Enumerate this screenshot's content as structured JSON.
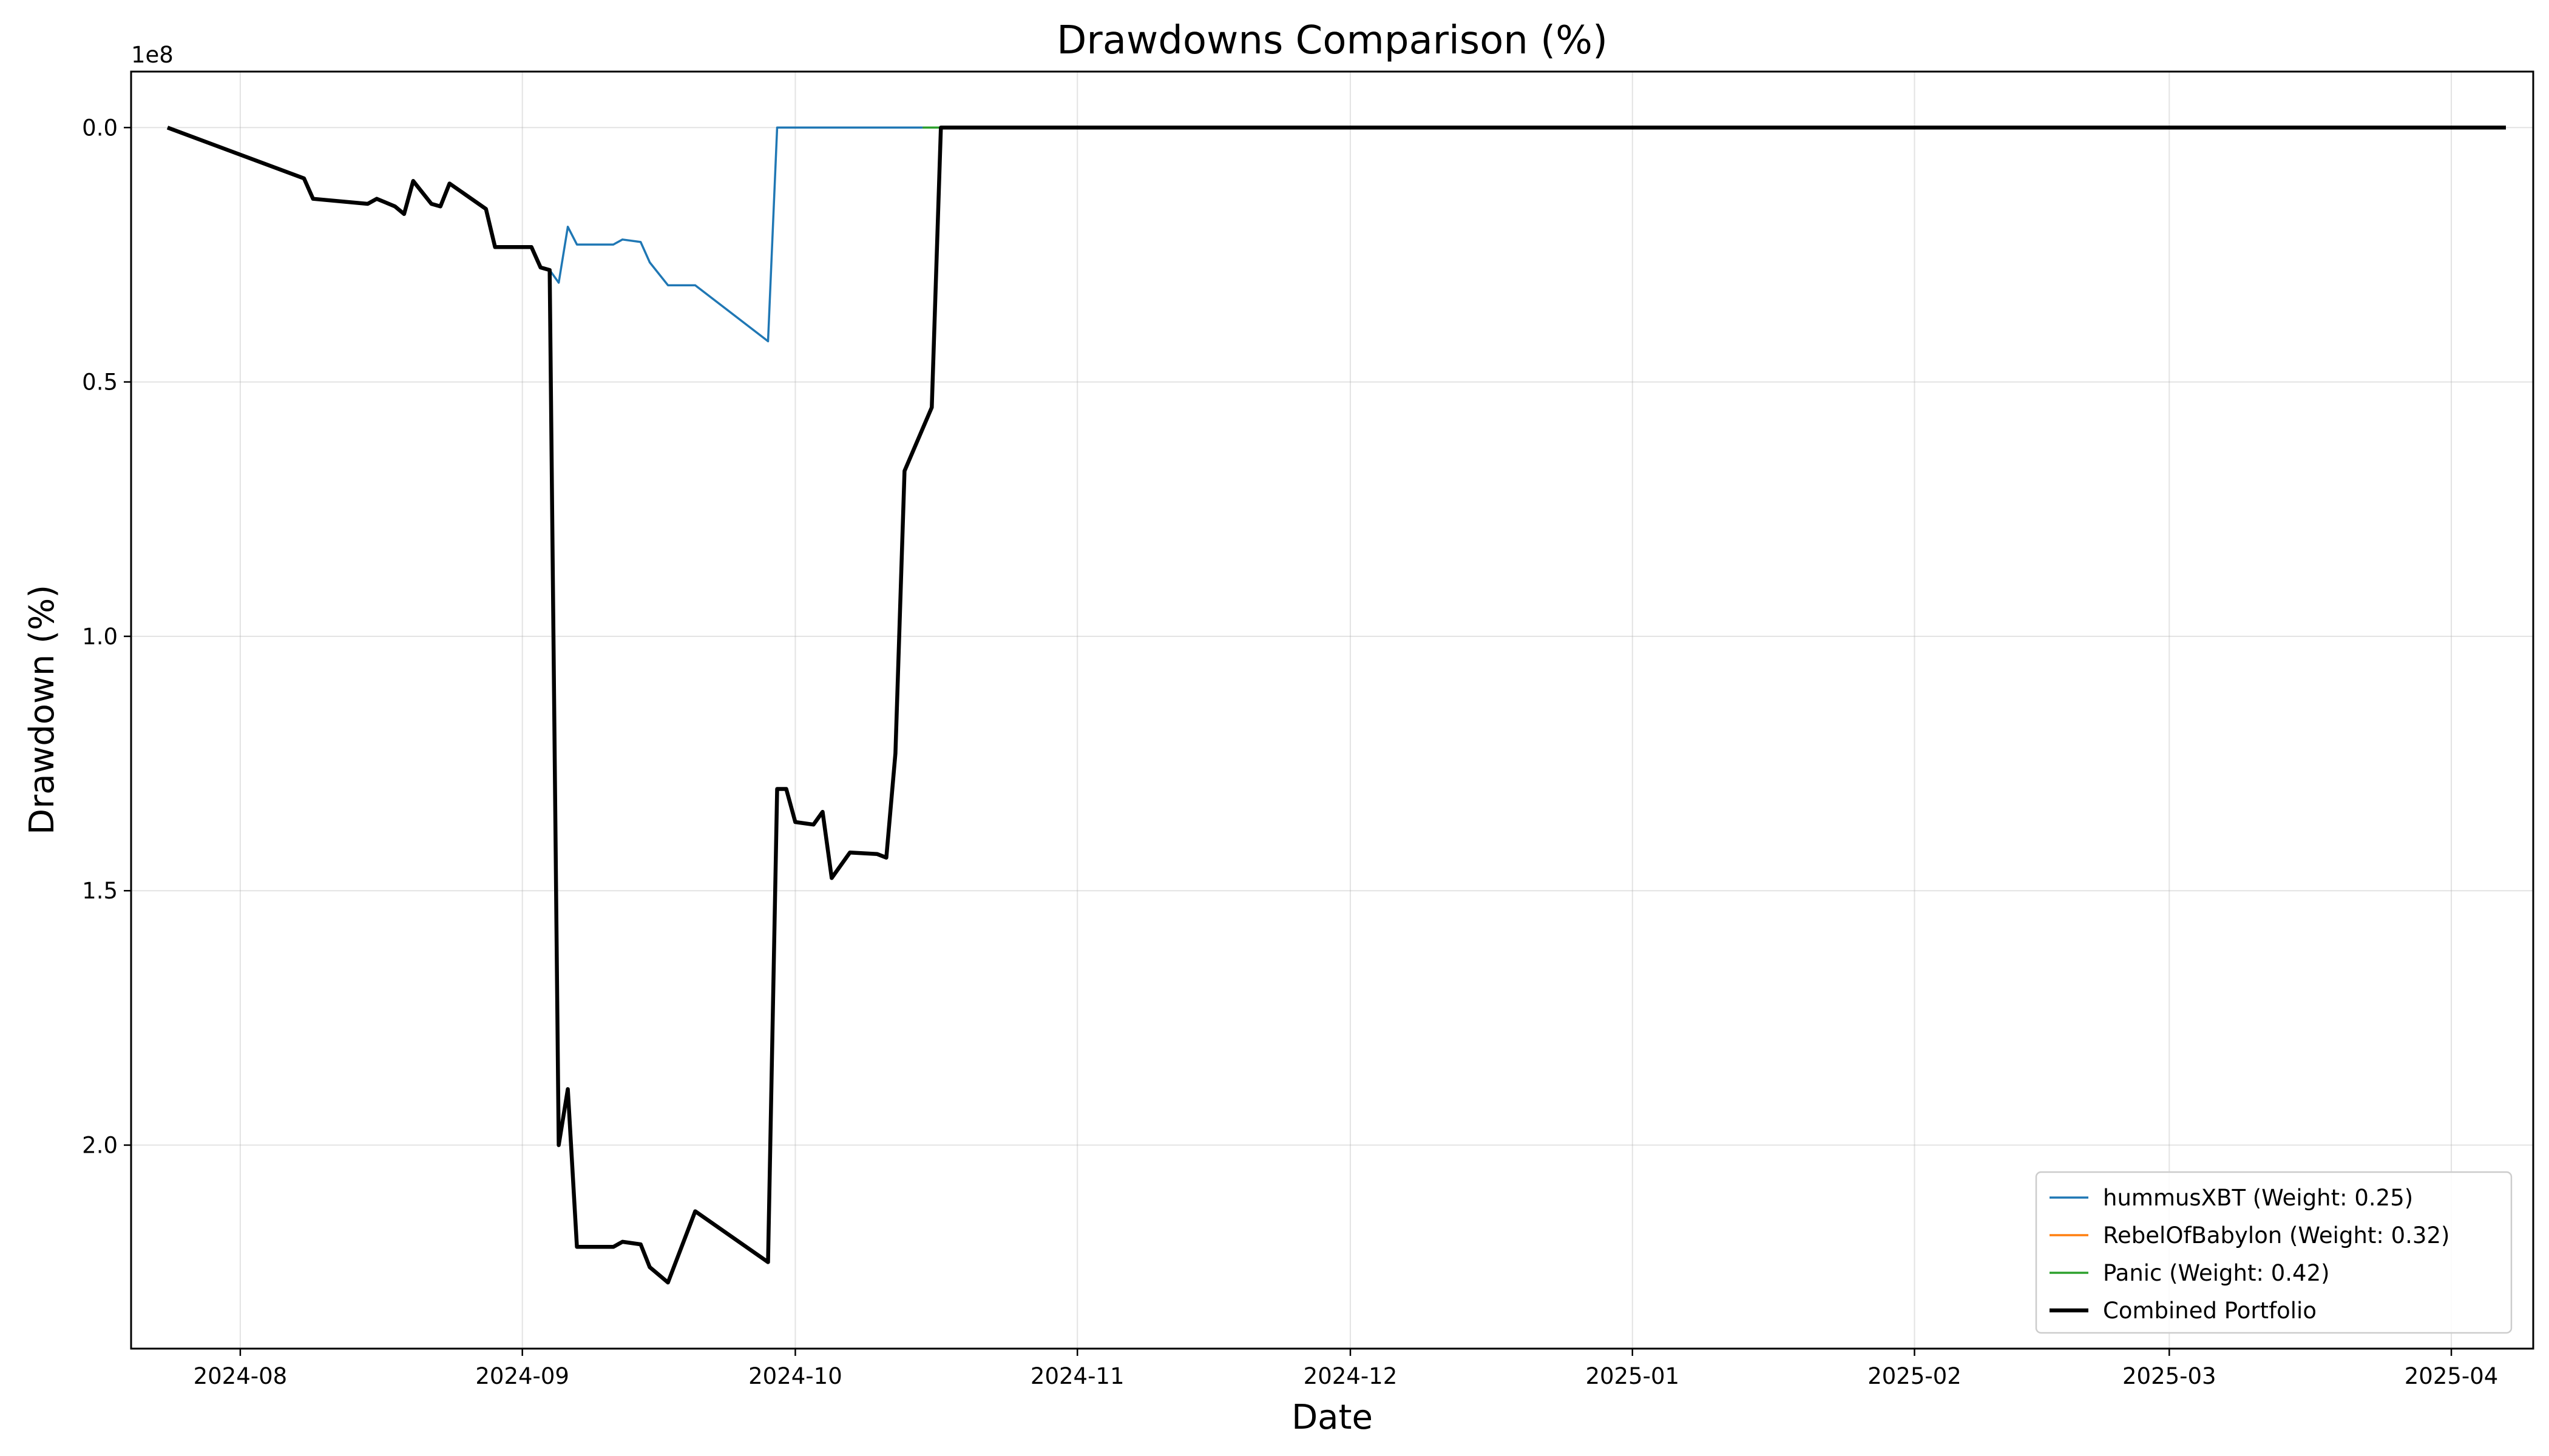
{
  "chart_data": {
    "type": "line",
    "title": "Drawdowns Comparison (%)",
    "xlabel": "Date",
    "ylabel": "Drawdown (%)",
    "y_offset_text": "1e8",
    "y_multiplier": 100000000,
    "y_inverted": true,
    "ylim": [
      2.4,
      -0.11
    ],
    "xlim": [
      "2024-07-20",
      "2025-04-10"
    ],
    "x_ticks": [
      "2024-08-01",
      "2024-09-01",
      "2024-10-01",
      "2024-11-01",
      "2024-12-01",
      "2025-01-01",
      "2025-02-01",
      "2025-03-01",
      "2025-04-01"
    ],
    "x_tick_labels": [
      "2024-08",
      "2024-09",
      "2024-10",
      "2024-11",
      "2024-12",
      "2025-01",
      "2025-02",
      "2025-03",
      "2025-04"
    ],
    "y_ticks": [
      0.0,
      0.5,
      1.0,
      1.5,
      2.0
    ],
    "y_tick_labels": [
      "0.0",
      "0.5",
      "1.0",
      "1.5",
      "2.0"
    ],
    "grid": true,
    "legend_position": "lower-right",
    "series": [
      {
        "name": "hummusXBT (Weight: 0.25)",
        "color": "#1f77b4",
        "width": 3.5,
        "points": [
          [
            "2024-07-24",
            0.0
          ],
          [
            "2024-08-08",
            0.1
          ],
          [
            "2024-08-09",
            0.14
          ],
          [
            "2024-08-15",
            0.15
          ],
          [
            "2024-08-16",
            0.14
          ],
          [
            "2024-08-18",
            0.155
          ],
          [
            "2024-08-19",
            0.17
          ],
          [
            "2024-08-20",
            0.105
          ],
          [
            "2024-08-22",
            0.15
          ],
          [
            "2024-08-23",
            0.155
          ],
          [
            "2024-08-24",
            0.11
          ],
          [
            "2024-08-28",
            0.16
          ],
          [
            "2024-08-29",
            0.235
          ],
          [
            "2024-09-02",
            0.235
          ],
          [
            "2024-09-03",
            0.275
          ],
          [
            "2024-09-04",
            0.28
          ],
          [
            "2024-09-05",
            0.305
          ],
          [
            "2024-09-06",
            0.195
          ],
          [
            "2024-09-07",
            0.23
          ],
          [
            "2024-09-11",
            0.23
          ],
          [
            "2024-09-12",
            0.22
          ],
          [
            "2024-09-14",
            0.225
          ],
          [
            "2024-09-15",
            0.265
          ],
          [
            "2024-09-17",
            0.31
          ],
          [
            "2024-09-20",
            0.31
          ],
          [
            "2024-09-28",
            0.42
          ],
          [
            "2024-09-29",
            0.0
          ],
          [
            "2025-04-07",
            0.0
          ]
        ]
      },
      {
        "name": "RebelOfBabylon (Weight: 0.32)",
        "color": "#ff7f0e",
        "width": 3.5,
        "points": [
          [
            "2024-10-15",
            0.0
          ],
          [
            "2025-04-07",
            0.0
          ]
        ]
      },
      {
        "name": "Panic (Weight: 0.42)",
        "color": "#2ca02c",
        "width": 3.5,
        "points": [
          [
            "2024-10-15",
            0.0
          ],
          [
            "2025-04-07",
            0.0
          ]
        ]
      },
      {
        "name": "Combined Portfolio",
        "color": "#000000",
        "width": 6.5,
        "points": [
          [
            "2024-07-24",
            0.0
          ],
          [
            "2024-08-08",
            0.1
          ],
          [
            "2024-08-09",
            0.14
          ],
          [
            "2024-08-15",
            0.15
          ],
          [
            "2024-08-16",
            0.14
          ],
          [
            "2024-08-18",
            0.155
          ],
          [
            "2024-08-19",
            0.17
          ],
          [
            "2024-08-20",
            0.105
          ],
          [
            "2024-08-22",
            0.15
          ],
          [
            "2024-08-23",
            0.155
          ],
          [
            "2024-08-24",
            0.11
          ],
          [
            "2024-08-28",
            0.16
          ],
          [
            "2024-08-29",
            0.235
          ],
          [
            "2024-09-02",
            0.235
          ],
          [
            "2024-09-03",
            0.275
          ],
          [
            "2024-09-04",
            0.28
          ],
          [
            "2024-09-05",
            2.0
          ],
          [
            "2024-09-06",
            1.89
          ],
          [
            "2024-09-07",
            2.2
          ],
          [
            "2024-09-11",
            2.2
          ],
          [
            "2024-09-12",
            2.19
          ],
          [
            "2024-09-14",
            2.195
          ],
          [
            "2024-09-15",
            2.24
          ],
          [
            "2024-09-17",
            2.27
          ],
          [
            "2024-09-20",
            2.13
          ],
          [
            "2024-09-28",
            2.23
          ],
          [
            "2024-09-29",
            1.3
          ],
          [
            "2024-09-30",
            1.3
          ],
          [
            "2024-10-01",
            1.365
          ],
          [
            "2024-10-03",
            1.37
          ],
          [
            "2024-10-04",
            1.345
          ],
          [
            "2024-10-05",
            1.475
          ],
          [
            "2024-10-07",
            1.425
          ],
          [
            "2024-10-10",
            1.428
          ],
          [
            "2024-10-11",
            1.435
          ],
          [
            "2024-10-12",
            1.23
          ],
          [
            "2024-10-13",
            0.675
          ],
          [
            "2024-10-16",
            0.55
          ],
          [
            "2024-10-17",
            0.0
          ],
          [
            "2025-04-07",
            0.0
          ]
        ]
      }
    ]
  }
}
